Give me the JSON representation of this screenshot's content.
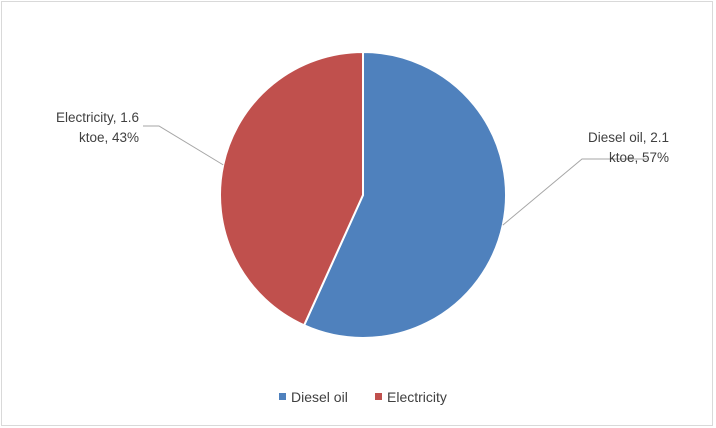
{
  "chart_data": {
    "type": "pie",
    "title": "",
    "slices": [
      {
        "name": "Diesel oil",
        "value": 2.1,
        "percent": 57,
        "color": "#4f81bd",
        "label_lines": [
          "Diesel oil, 2.1",
          "ktoe, 57%"
        ]
      },
      {
        "name": "Electricity",
        "value": 1.6,
        "percent": 43,
        "color": "#c0504d",
        "label_lines": [
          "Electricity, 1.6",
          "ktoe, 43%"
        ]
      }
    ],
    "start_angle_deg": 0,
    "direction": "clockwise",
    "legend": {
      "position": "bottom",
      "items": [
        "Diesel oil",
        "Electricity"
      ]
    }
  }
}
